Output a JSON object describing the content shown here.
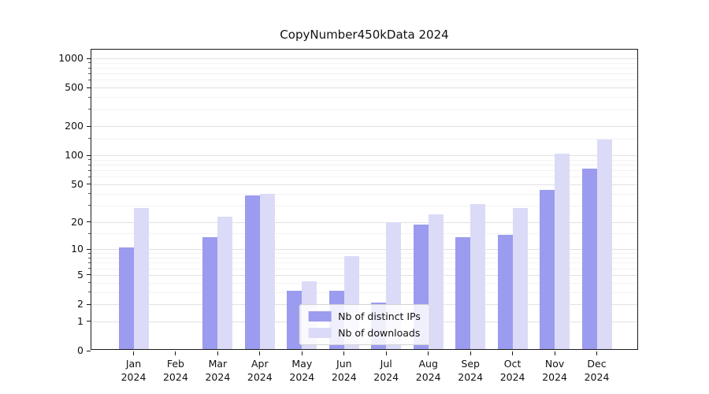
{
  "colors": {
    "background": "#ffffff",
    "axis": "#1a1a1a",
    "grid_major": "#e2e2e2",
    "grid_minor": "#f2f2f2",
    "distinct_ips": "#9b9bef",
    "downloads": "#dbdbf8"
  },
  "chart_data": {
    "type": "bar",
    "title": "CopyNumber450kData 2024",
    "scale": "log1p",
    "grid": true,
    "legend_position": "lower center",
    "categories": [
      "Jan",
      "Feb",
      "Mar",
      "Apr",
      "May",
      "Jun",
      "Jul",
      "Aug",
      "Sep",
      "Oct",
      "Nov",
      "Dec"
    ],
    "year_label": "2024",
    "series": [
      {
        "name": "Nb of distinct IPs",
        "color": "#9b9bef",
        "values": [
          10,
          0,
          13,
          37,
          3,
          3,
          2,
          18,
          13,
          14,
          42,
          70
        ]
      },
      {
        "name": "Nb of downloads",
        "color": "#dbdbf8",
        "values": [
          27,
          0,
          22,
          38,
          4,
          8,
          19,
          23,
          30,
          27,
          100,
          140
        ]
      }
    ],
    "yticks": [
      0,
      1,
      2,
      5,
      10,
      20,
      50,
      100,
      200,
      500,
      1000
    ],
    "yticks_minor": [
      3,
      4,
      6,
      7,
      8,
      9,
      15,
      30,
      40,
      60,
      70,
      80,
      90,
      150,
      300,
      400,
      600,
      700,
      800,
      900
    ],
    "ylim": [
      0,
      1000
    ],
    "xlabel": "",
    "ylabel": ""
  }
}
